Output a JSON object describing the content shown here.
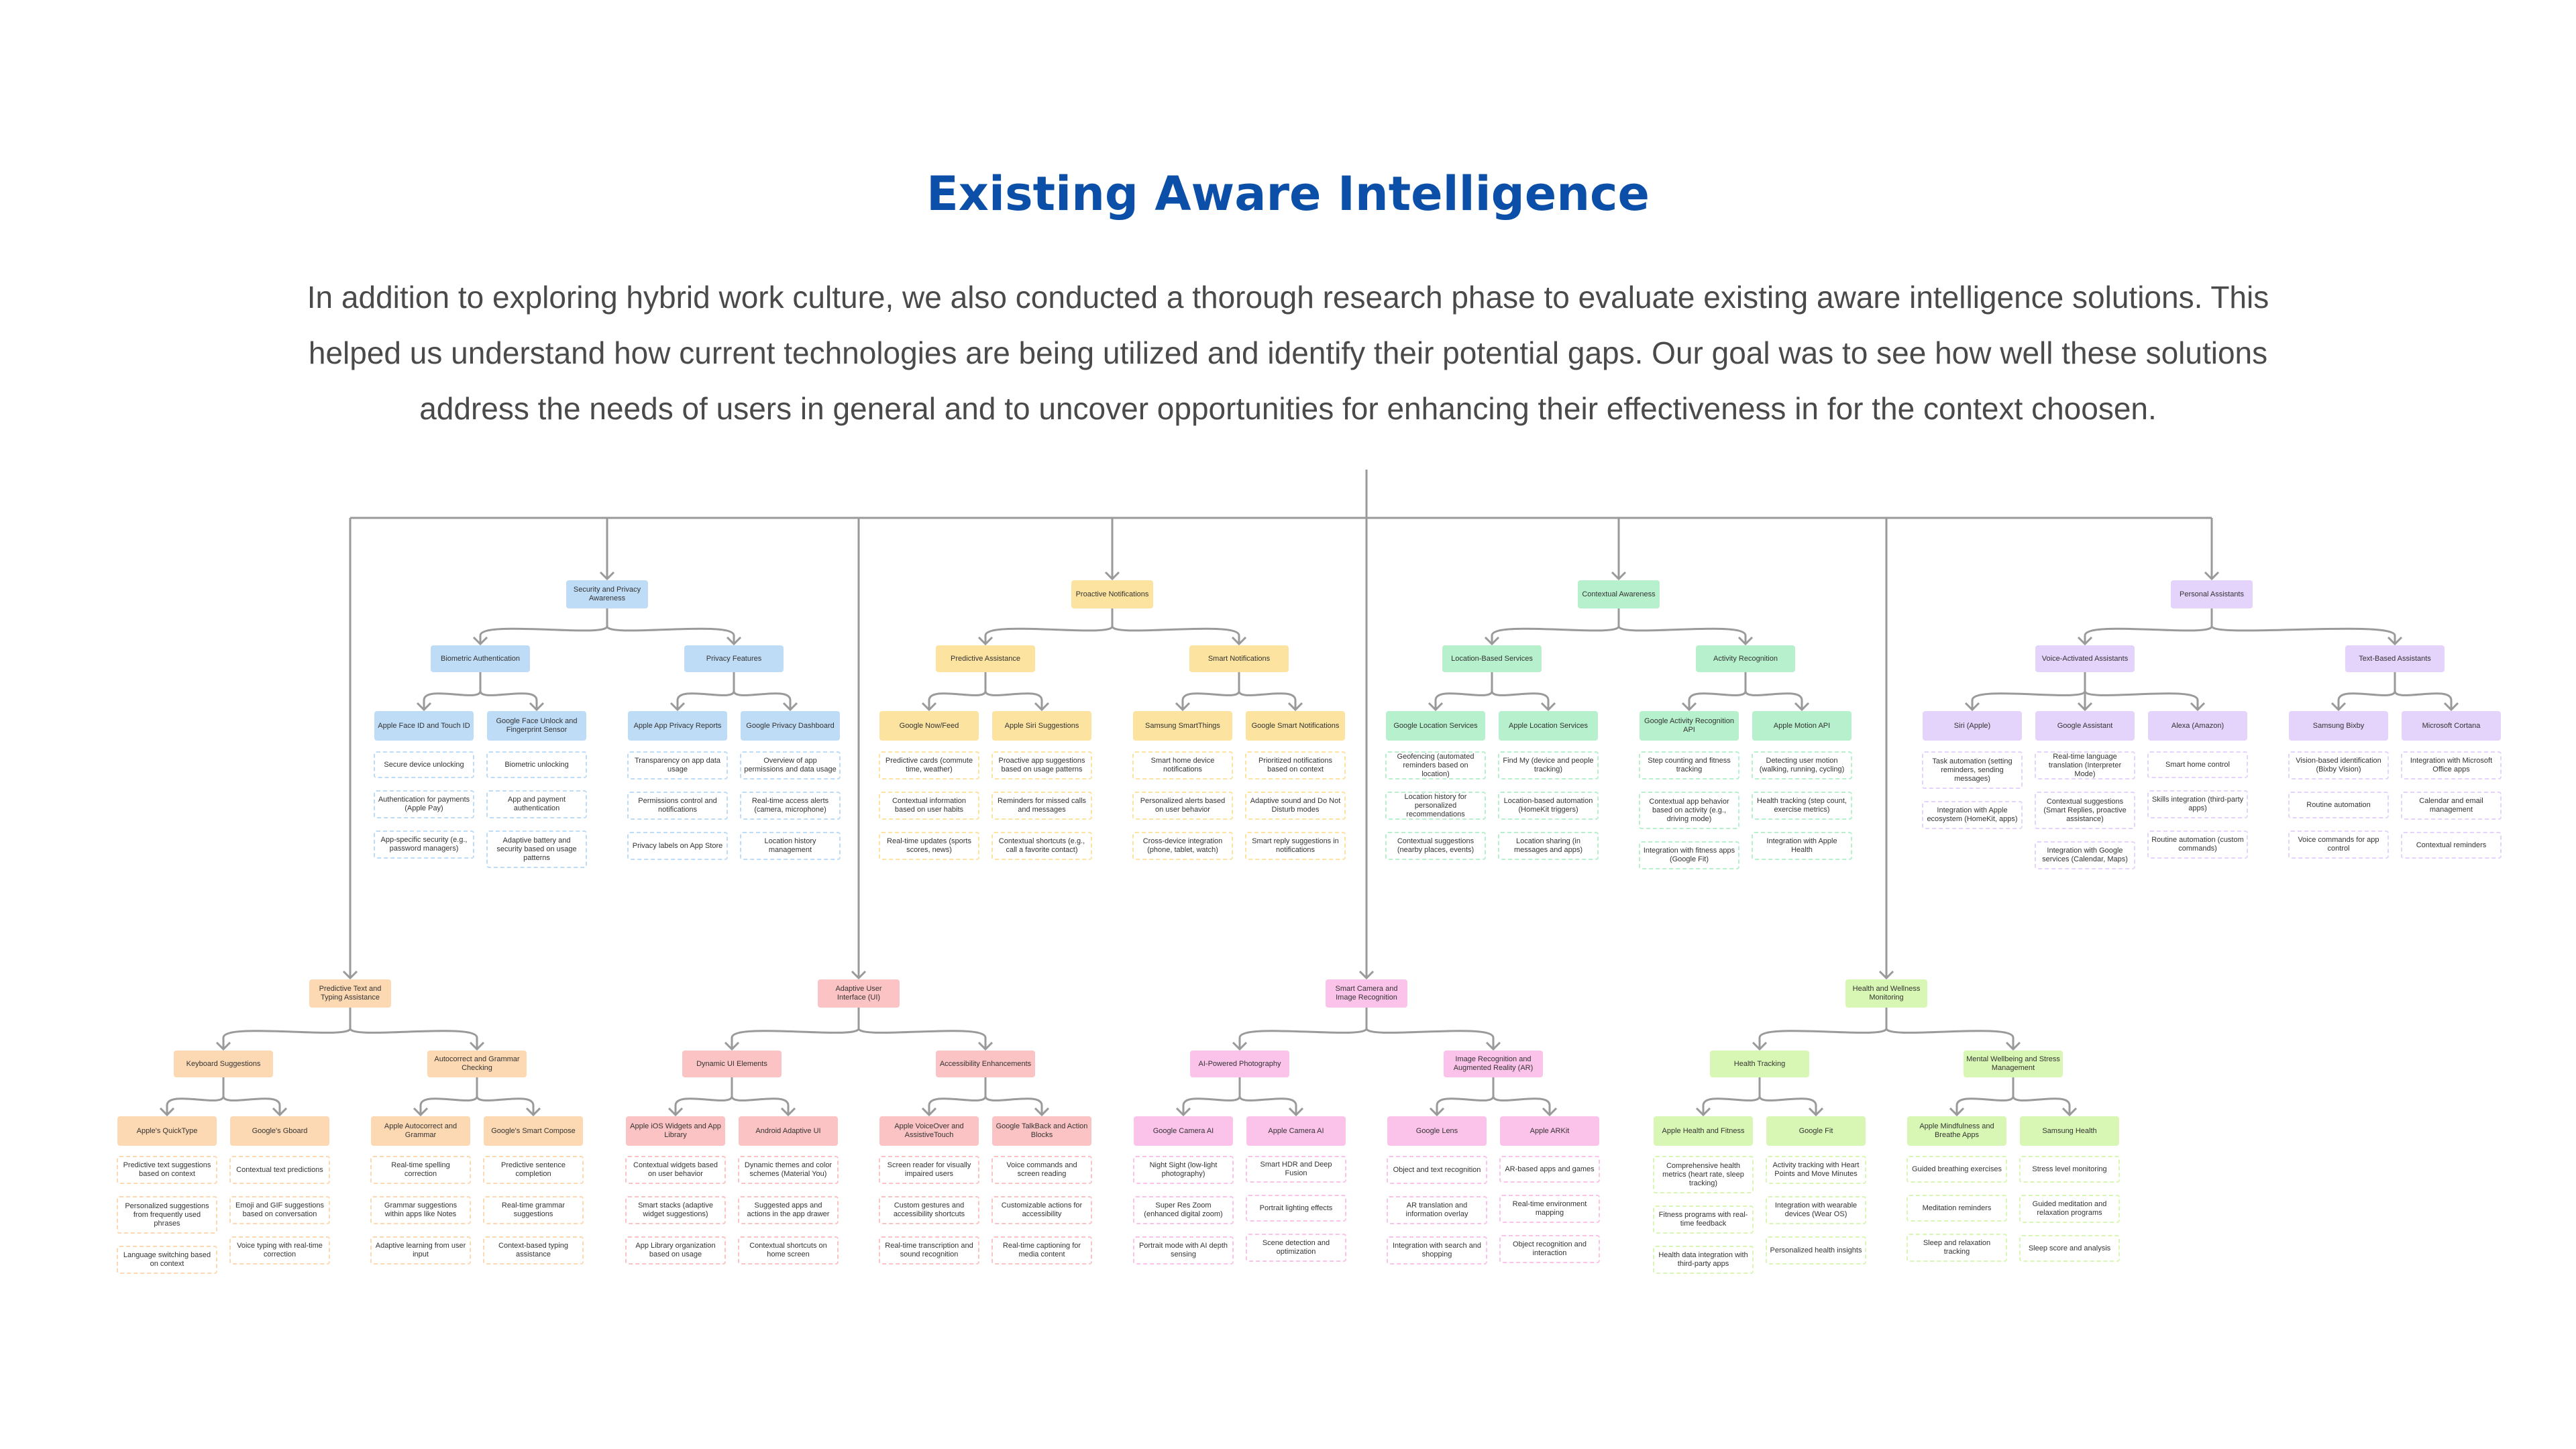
{
  "title": "Existing Aware Intelligence",
  "intro": "In addition to exploring hybrid work culture, we also conducted a thorough research phase to evaluate existing aware intelligence solutions. This helped us understand how current technologies are being utilized and identify their potential gaps. Our goal was to see how well these solutions address the needs of users in general and to uncover opportunities for enhancing their effectiveness in for the context choosen.",
  "colors": {
    "title": "#0b4fa8",
    "text": "#4a4a4a",
    "connector": "#9a9a9a",
    "blue": "#bfdcf7",
    "yellow": "#fde3a0",
    "green": "#b6f0cc",
    "purple": "#e4d3fb",
    "orange": "#fdd9b3",
    "red": "#fbc3c3",
    "pink": "#fbc3ea",
    "lime": "#d9f7b4"
  },
  "diagram": {
    "categories": [
      {
        "label": "Security and Privacy Awareness",
        "color": "blue",
        "groups": [
          {
            "label": "Biometric Authentication",
            "products": [
              {
                "label": "Apple Face ID and Touch ID",
                "features": [
                  "Secure device unlocking",
                  "Authentication for payments (Apple Pay)",
                  "App-specific security (e.g., password managers)"
                ]
              },
              {
                "label": "Google Face Unlock and Fingerprint Sensor",
                "features": [
                  "Biometric unlocking",
                  "App and payment authentication",
                  "Adaptive battery and security based on usage patterns"
                ]
              }
            ]
          },
          {
            "label": "Privacy Features",
            "products": [
              {
                "label": "Apple App Privacy Reports",
                "features": [
                  "Transparency on app data usage",
                  "Permissions control and notifications",
                  "Privacy labels on App Store"
                ]
              },
              {
                "label": "Google Privacy Dashboard",
                "features": [
                  "Overview of app permissions and data usage",
                  "Real-time access alerts (camera, microphone)",
                  "Location history management"
                ]
              }
            ]
          }
        ]
      },
      {
        "label": "Proactive Notifications",
        "color": "yellow",
        "groups": [
          {
            "label": "Predictive Assistance",
            "products": [
              {
                "label": "Google Now/Feed",
                "features": [
                  "Predictive cards (commute time, weather)",
                  "Contextual information based on user habits",
                  "Real-time updates (sports scores, news)"
                ]
              },
              {
                "label": "Apple Siri Suggestions",
                "features": [
                  "Proactive app suggestions based on usage patterns",
                  "Reminders for missed calls and messages",
                  "Contextual shortcuts (e.g., call a favorite contact)"
                ]
              }
            ]
          },
          {
            "label": "Smart Notifications",
            "products": [
              {
                "label": "Samsung SmartThings",
                "features": [
                  "Smart home device notifications",
                  "Personalized alerts based on user behavior",
                  "Cross-device integration (phone, tablet, watch)"
                ]
              },
              {
                "label": "Google Smart Notifications",
                "features": [
                  "Prioritized notifications based on context",
                  "Adaptive sound and Do Not Disturb modes",
                  "Smart reply suggestions in notifications"
                ]
              }
            ]
          }
        ]
      },
      {
        "label": "Contextual Awareness",
        "color": "green",
        "groups": [
          {
            "label": "Location-Based Services",
            "products": [
              {
                "label": "Google Location Services",
                "features": [
                  "Geofencing (automated reminders based on location)",
                  "Location history for personalized recommendations",
                  "Contextual suggestions (nearby places, events)"
                ]
              },
              {
                "label": "Apple Location Services",
                "features": [
                  "Find My (device and people tracking)",
                  "Location-based automation (HomeKit triggers)",
                  "Location sharing (in messages and apps)"
                ]
              }
            ]
          },
          {
            "label": "Activity Recognition",
            "products": [
              {
                "label": "Google Activity Recognition API",
                "features": [
                  "Step counting and fitness tracking",
                  "Contextual app behavior based on activity (e.g., driving mode)",
                  "Integration with fitness apps (Google Fit)"
                ]
              },
              {
                "label": "Apple Motion API",
                "features": [
                  "Detecting user motion (walking, running, cycling)",
                  "Health tracking (step count, exercise metrics)",
                  "Integration with Apple Health"
                ]
              }
            ]
          }
        ]
      },
      {
        "label": "Personal Assistants",
        "color": "purple",
        "groups": [
          {
            "label": "Voice-Activated Assistants",
            "products": [
              {
                "label": "Siri (Apple)",
                "features": [
                  "Task automation (setting reminders, sending messages)",
                  "Integration with Apple ecosystem (HomeKit, apps)"
                ]
              },
              {
                "label": "Google Assistant",
                "features": [
                  "Real-time language translation (Interpreter Mode)",
                  "Contextual suggestions (Smart Replies, proactive assistance)",
                  "Integration with Google services (Calendar, Maps)"
                ]
              },
              {
                "label": "Alexa (Amazon)",
                "features": [
                  "Smart home control",
                  "Skills integration (third-party apps)",
                  "Routine automation (custom commands)"
                ]
              }
            ]
          },
          {
            "label": "Text-Based Assistants",
            "products": [
              {
                "label": "Samsung Bixby",
                "features": [
                  "Vision-based identification (Bixby Vision)",
                  "Routine automation",
                  "Voice commands for app control"
                ]
              },
              {
                "label": "Microsoft Cortana",
                "features": [
                  "Integration with Microsoft Office apps",
                  "Calendar and email management",
                  "Contextual reminders"
                ]
              }
            ]
          }
        ]
      },
      {
        "label": "Predictive Text and Typing Assistance",
        "color": "orange",
        "groups": [
          {
            "label": "Keyboard Suggestions",
            "products": [
              {
                "label": "Apple's QuickType",
                "features": [
                  "Predictive text suggestions based on context",
                  "Personalized suggestions from frequently used phrases",
                  "Language switching based on context"
                ]
              },
              {
                "label": "Google's Gboard",
                "features": [
                  "Contextual text predictions",
                  "Emoji and GIF suggestions based on conversation",
                  "Voice typing with real-time correction"
                ]
              }
            ]
          },
          {
            "label": "Autocorrect and Grammar Checking",
            "products": [
              {
                "label": "Apple Autocorrect and Grammar",
                "features": [
                  "Real-time spelling correction",
                  "Grammar suggestions within apps like Notes",
                  "Adaptive learning from user input"
                ]
              },
              {
                "label": "Google's Smart Compose",
                "features": [
                  "Predictive sentence completion",
                  "Real-time grammar suggestions",
                  "Context-based typing assistance"
                ]
              }
            ]
          }
        ]
      },
      {
        "label": "Adaptive User Interface (UI)",
        "color": "red",
        "groups": [
          {
            "label": "Dynamic UI Elements",
            "products": [
              {
                "label": "Apple iOS Widgets and App Library",
                "features": [
                  "Contextual widgets based on user behavior",
                  "Smart stacks (adaptive widget suggestions)",
                  "App Library organization based on usage"
                ]
              },
              {
                "label": "Android Adaptive UI",
                "features": [
                  "Dynamic themes and color schemes (Material You)",
                  "Suggested apps and actions in the app drawer",
                  "Contextual shortcuts on home screen"
                ]
              }
            ]
          },
          {
            "label": "Accessibility Enhancements",
            "products": [
              {
                "label": "Apple VoiceOver and AssistiveTouch",
                "features": [
                  "Screen reader for visually impaired users",
                  "Custom gestures and accessibility shortcuts",
                  "Real-time transcription and sound recognition"
                ]
              },
              {
                "label": "Google TalkBack and Action Blocks",
                "features": [
                  "Voice commands and screen reading",
                  "Customizable actions for accessibility",
                  "Real-time captioning for media content"
                ]
              }
            ]
          }
        ]
      },
      {
        "label": "Smart Camera and Image Recognition",
        "color": "pink",
        "groups": [
          {
            "label": "AI-Powered Photography",
            "products": [
              {
                "label": "Google Camera AI",
                "features": [
                  "Night Sight (low-light photography)",
                  "Super Res Zoom (enhanced digital zoom)",
                  "Portrait mode with AI depth sensing"
                ]
              },
              {
                "label": "Apple Camera AI",
                "features": [
                  "Smart HDR and Deep Fusion",
                  "Portrait lighting effects",
                  "Scene detection and optimization"
                ]
              }
            ]
          },
          {
            "label": "Image Recognition and Augmented Reality (AR)",
            "products": [
              {
                "label": "Google Lens",
                "features": [
                  "Object and text recognition",
                  "AR translation and information overlay",
                  "Integration with search and shopping"
                ]
              },
              {
                "label": "Apple ARKit",
                "features": [
                  "AR-based apps and games",
                  "Real-time environment mapping",
                  "Object recognition and interaction"
                ]
              }
            ]
          }
        ]
      },
      {
        "label": "Health and Wellness Monitoring",
        "color": "lime",
        "groups": [
          {
            "label": "Health Tracking",
            "products": [
              {
                "label": "Apple Health and Fitness",
                "features": [
                  "Comprehensive health metrics (heart rate, sleep tracking)",
                  "Fitness programs with real-time feedback",
                  "Health data integration with third-party apps"
                ]
              },
              {
                "label": "Google Fit",
                "features": [
                  "Activity tracking with Heart Points and Move Minutes",
                  "Integration with wearable devices (Wear OS)",
                  "Personalized health insights"
                ]
              }
            ]
          },
          {
            "label": "Mental Wellbeing and Stress Management",
            "products": [
              {
                "label": "Apple Mindfulness and Breathe Apps",
                "features": [
                  "Guided breathing exercises",
                  "Meditation reminders",
                  "Sleep and relaxation tracking"
                ]
              },
              {
                "label": "Samsung Health",
                "features": [
                  "Stress level monitoring",
                  "Guided meditation and relaxation programs",
                  "Sleep score and analysis"
                ]
              }
            ]
          }
        ]
      }
    ]
  }
}
